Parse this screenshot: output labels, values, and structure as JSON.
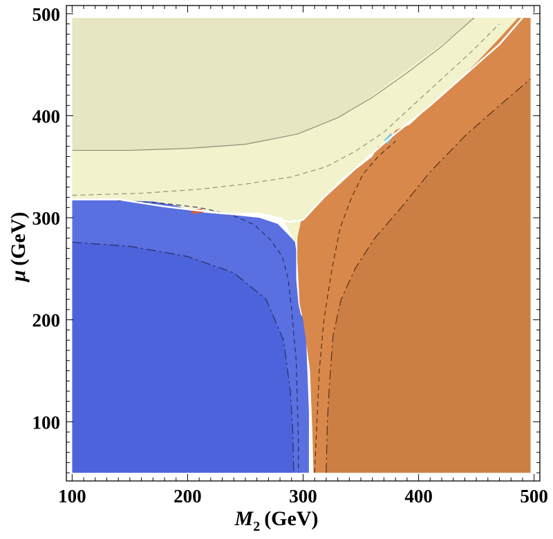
{
  "chart_data": {
    "type": "contour",
    "xlabel": {
      "symbol": "M",
      "subscript": "2",
      "unit": "(GeV)"
    },
    "ylabel": {
      "symbol": "μ",
      "unit": "(GeV)"
    },
    "xlim": [
      95,
      505
    ],
    "ylim": [
      42,
      508
    ],
    "x_ticks": [
      100,
      200,
      300,
      400,
      500
    ],
    "y_ticks": [
      100,
      200,
      300,
      400,
      500
    ],
    "data_extent": {
      "x": [
        100,
        497
      ],
      "y": [
        50,
        496
      ]
    },
    "grid": false,
    "colors": {
      "bino_like": "#e6e6c3",
      "bino_like_light": "#f2f2cc",
      "bino_tip": "#fafadb",
      "higgsino_like": "#5a6fe0",
      "higgsino_like_dark": "#4d63db",
      "wino_like": "#d9884b",
      "wino_like_dark": "#cc7f44",
      "sliver_red": "#d9603c",
      "sliver_cyan": "#7fc8d8"
    },
    "regions": [
      {
        "id": "upper-bino",
        "fill": "#f2f2cc",
        "points": [
          [
            100,
            496
          ],
          [
            490,
            496
          ],
          [
            470,
            470
          ],
          [
            440,
            440
          ],
          [
            410,
            410
          ],
          [
            388,
            388
          ],
          [
            375,
            375
          ],
          [
            350,
            353
          ],
          [
            335,
            340
          ],
          [
            318,
            320
          ],
          [
            308,
            305
          ],
          [
            300,
            298
          ],
          [
            293,
            275
          ],
          [
            282,
            300
          ],
          [
            262,
            305
          ],
          [
            240,
            305
          ],
          [
            215,
            306
          ],
          [
            200,
            307
          ],
          [
            180,
            310
          ],
          [
            160,
            315
          ],
          [
            140,
            318
          ],
          [
            120,
            318
          ],
          [
            100,
            318
          ]
        ]
      },
      {
        "id": "higgsino-region",
        "fill": "#5a6fe0",
        "points": [
          [
            100,
            317
          ],
          [
            140,
            317
          ],
          [
            170,
            316
          ],
          [
            190,
            312
          ],
          [
            205,
            306
          ],
          [
            225,
            304
          ],
          [
            245,
            302
          ],
          [
            262,
            300
          ],
          [
            278,
            294
          ],
          [
            290,
            280
          ],
          [
            293,
            276
          ],
          [
            294,
            268
          ],
          [
            294,
            240
          ],
          [
            296,
            215
          ],
          [
            298,
            205
          ],
          [
            302,
            200
          ],
          [
            303,
            170
          ],
          [
            304,
            140
          ],
          [
            305,
            110
          ],
          [
            305,
            80
          ],
          [
            305,
            50
          ],
          [
            100,
            50
          ]
        ]
      },
      {
        "id": "wino-region",
        "fill": "#d9884b",
        "points": [
          [
            497,
            496
          ],
          [
            486,
            496
          ],
          [
            470,
            476
          ],
          [
            450,
            452
          ],
          [
            430,
            430
          ],
          [
            410,
            410
          ],
          [
            392,
            391
          ],
          [
            380,
            386
          ],
          [
            376,
            378
          ],
          [
            370,
            372
          ],
          [
            365,
            370
          ],
          [
            360,
            360
          ],
          [
            350,
            351
          ],
          [
            340,
            343
          ],
          [
            330,
            333
          ],
          [
            318,
            320
          ],
          [
            305,
            304
          ],
          [
            298,
            296
          ],
          [
            295,
            280
          ],
          [
            295,
            260
          ],
          [
            297,
            215
          ],
          [
            300,
            200
          ],
          [
            303,
            175
          ],
          [
            306,
            150
          ],
          [
            307,
            120
          ],
          [
            308,
            90
          ],
          [
            309,
            50
          ],
          [
            497,
            50
          ]
        ]
      }
    ],
    "shading_regions": [
      {
        "id": "bino-top-darker",
        "fill": "#e6e6c3",
        "points": [
          [
            100,
            496
          ],
          [
            450,
            496
          ],
          [
            420,
            470
          ],
          [
            390,
            445
          ],
          [
            360,
            420
          ],
          [
            335,
            400
          ],
          [
            300,
            383
          ],
          [
            260,
            373
          ],
          [
            220,
            368
          ],
          [
            170,
            366
          ],
          [
            130,
            366
          ],
          [
            100,
            366
          ]
        ]
      },
      {
        "id": "higgsino-inner-darker",
        "fill": "#4d63db",
        "points": [
          [
            100,
            276
          ],
          [
            150,
            272
          ],
          [
            200,
            262
          ],
          [
            240,
            246
          ],
          [
            268,
            220
          ],
          [
            283,
            180
          ],
          [
            289,
            130
          ],
          [
            291,
            90
          ],
          [
            292,
            50
          ],
          [
            100,
            50
          ]
        ]
      },
      {
        "id": "wino-right-darker",
        "fill": "#cc7f44",
        "points": [
          [
            497,
            436
          ],
          [
            470,
            410
          ],
          [
            440,
            380
          ],
          [
            410,
            345
          ],
          [
            385,
            310
          ],
          [
            362,
            280
          ],
          [
            345,
            250
          ],
          [
            333,
            220
          ],
          [
            326,
            185
          ],
          [
            323,
            140
          ],
          [
            321,
            100
          ],
          [
            320,
            50
          ],
          [
            497,
            50
          ]
        ]
      }
    ],
    "contours": [
      {
        "id": "bino-solid",
        "style": "solid",
        "stroke": "#8a8a70",
        "points": [
          [
            100,
            366
          ],
          [
            150,
            366
          ],
          [
            200,
            368
          ],
          [
            250,
            372
          ],
          [
            295,
            382
          ],
          [
            330,
            398
          ],
          [
            360,
            418
          ],
          [
            390,
            442
          ],
          [
            420,
            468
          ],
          [
            448,
            496
          ]
        ]
      },
      {
        "id": "bino-dashed",
        "style": "dashed",
        "stroke": "#8a8a70",
        "points": [
          [
            100,
            322
          ],
          [
            160,
            324
          ],
          [
            210,
            328
          ],
          [
            250,
            333
          ],
          [
            290,
            340
          ],
          [
            320,
            350
          ],
          [
            345,
            365
          ],
          [
            370,
            384
          ],
          [
            395,
            410
          ],
          [
            420,
            436
          ],
          [
            445,
            462
          ],
          [
            470,
            490
          ]
        ]
      },
      {
        "id": "higgsino-dashed",
        "style": "dashed",
        "stroke": "#222a55",
        "points": [
          [
            140,
            317
          ],
          [
            180,
            314
          ],
          [
            210,
            310
          ],
          [
            238,
            303
          ],
          [
            258,
            293
          ],
          [
            272,
            278
          ],
          [
            282,
            262
          ],
          [
            287,
            240
          ],
          [
            290,
            210
          ],
          [
            294,
            160
          ],
          [
            295,
            120
          ],
          [
            296,
            80
          ],
          [
            296,
            50
          ]
        ]
      },
      {
        "id": "higgsino-dashdot",
        "style": "dashdot",
        "stroke": "#222a55",
        "points": [
          [
            100,
            276
          ],
          [
            150,
            272
          ],
          [
            200,
            262
          ],
          [
            240,
            246
          ],
          [
            268,
            220
          ],
          [
            283,
            180
          ],
          [
            289,
            130
          ],
          [
            291,
            90
          ],
          [
            292,
            50
          ]
        ]
      },
      {
        "id": "wino-dashed",
        "style": "dashed",
        "stroke": "#4a2a10",
        "points": [
          [
            310,
            50
          ],
          [
            312,
            100
          ],
          [
            314,
            150
          ],
          [
            318,
            200
          ],
          [
            325,
            250
          ],
          [
            332,
            290
          ],
          [
            342,
            320
          ],
          [
            352,
            343
          ],
          [
            365,
            360
          ],
          [
            380,
            375
          ]
        ]
      },
      {
        "id": "wino-dashdot",
        "style": "dashdot",
        "stroke": "#4a2a10",
        "points": [
          [
            320,
            50
          ],
          [
            321,
            100
          ],
          [
            323,
            140
          ],
          [
            326,
            185
          ],
          [
            333,
            220
          ],
          [
            345,
            250
          ],
          [
            362,
            280
          ],
          [
            385,
            310
          ],
          [
            410,
            345
          ],
          [
            440,
            380
          ],
          [
            470,
            410
          ],
          [
            497,
            436
          ]
        ]
      },
      {
        "id": "boundary-light",
        "style": "solid",
        "stroke": "#ffffff",
        "points": [
          [
            100,
            318
          ],
          [
            140,
            318
          ],
          [
            180,
            311
          ],
          [
            210,
            307
          ],
          [
            245,
            303
          ],
          [
            270,
            301
          ],
          [
            288,
            296
          ],
          [
            300,
            298
          ],
          [
            318,
            320
          ],
          [
            350,
            353
          ],
          [
            375,
            378
          ],
          [
            410,
            410
          ],
          [
            440,
            440
          ],
          [
            470,
            470
          ],
          [
            490,
            496
          ]
        ]
      }
    ],
    "slivers": [
      {
        "id": "red-sliver",
        "fill": "#d9603c",
        "points": [
          [
            203,
            307
          ],
          [
            212,
            309
          ],
          [
            214,
            305
          ],
          [
            204,
            304
          ]
        ]
      },
      {
        "id": "cyan-sliver",
        "fill": "#7fc8d8",
        "points": [
          [
            373,
            372
          ],
          [
            378,
            380
          ],
          [
            376,
            383
          ],
          [
            370,
            376
          ]
        ]
      }
    ]
  }
}
